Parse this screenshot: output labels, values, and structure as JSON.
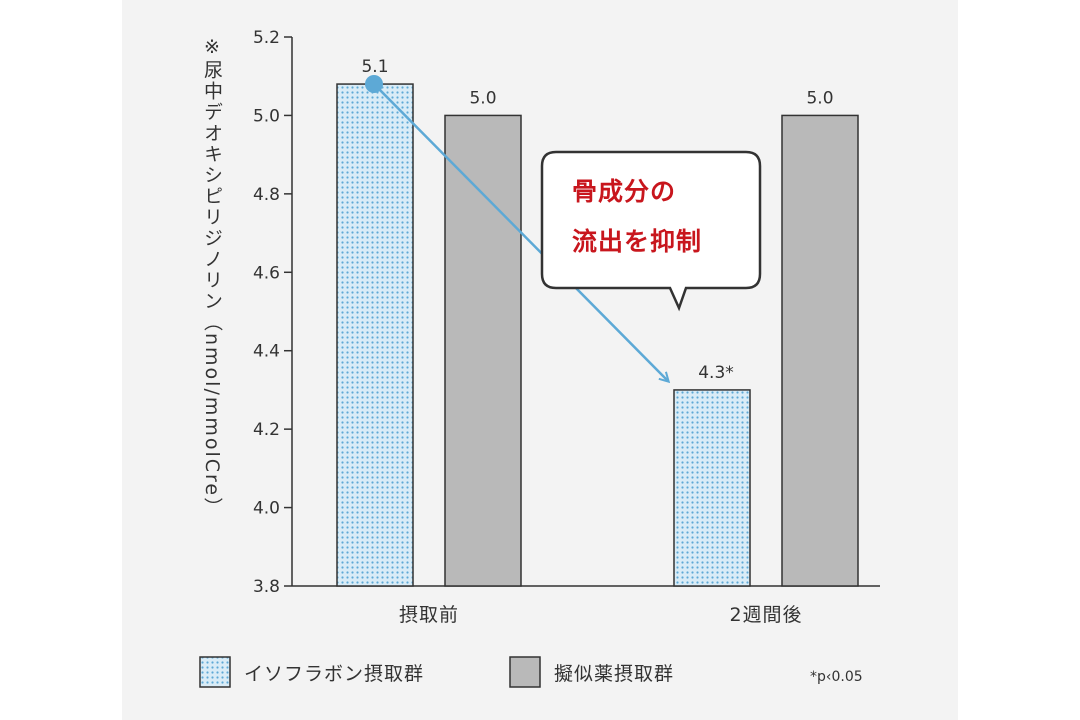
{
  "colors": {
    "isoflavone_fill": "#d9ecf7",
    "isoflavone_dot": "#5da9d6",
    "placebo_fill": "#b9b9b9",
    "arrow": "#5da9d6",
    "callout_text": "#c8161d",
    "axis": "#333333"
  },
  "chart_data": {
    "type": "bar",
    "ylabel": "※尿中デオキシピリジノリン（nmol/mmolCre）",
    "ylim": [
      3.8,
      5.2
    ],
    "yticks": [
      "3.8",
      "4.0",
      "4.2",
      "4.4",
      "4.6",
      "4.8",
      "5.0",
      "5.2"
    ],
    "categories": [
      "摂取前",
      "2週間後"
    ],
    "series": [
      {
        "name": "イソフラボン摂取群",
        "values": [
          5.08,
          4.3
        ],
        "labels": [
          "5.1",
          "4.3*"
        ]
      },
      {
        "name": "擬似薬摂取群",
        "values": [
          5.0,
          5.0
        ],
        "labels": [
          "5.0",
          "5.0"
        ]
      }
    ],
    "annotation": {
      "line1": "骨成分の",
      "line2": "流出を抑制"
    },
    "note": "*p‹0.05",
    "legend_position": "bottom"
  }
}
